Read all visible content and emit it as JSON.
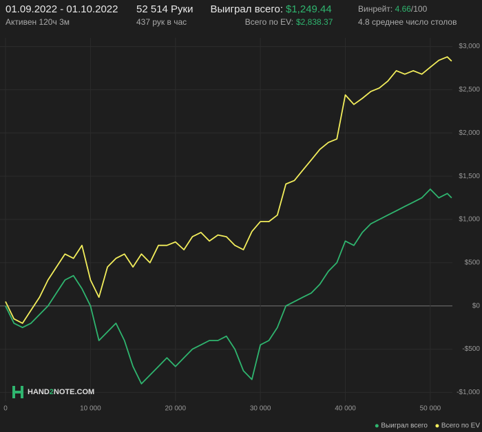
{
  "header": {
    "period": "01.09.2022 - 01.10.2022",
    "active": "Активен 120ч 3м",
    "hands": "52 514 Руки",
    "hands_per_hour": "437 рук в час",
    "won_label": "Выиграл всего:",
    "won_value": "$1,249.44",
    "ev_label": "Всего по EV:",
    "ev_value": "$2,838.37",
    "winrate_label": "Винрейт:",
    "winrate_value": "4.66",
    "winrate_unit": "/100",
    "tables": "4.8 среднее число столов"
  },
  "watermark": {
    "left": "HAND",
    "mid": "2",
    "right": "NOTE.COM"
  },
  "chart_data": {
    "type": "line",
    "grid": true,
    "legend": "bottom-right",
    "x": [
      0,
      1000,
      2000,
      3000,
      4000,
      5000,
      6000,
      7000,
      8000,
      9000,
      10000,
      11000,
      12000,
      13000,
      14000,
      15000,
      16000,
      17000,
      18000,
      19000,
      20000,
      21000,
      22000,
      23000,
      24000,
      25000,
      26000,
      27000,
      28000,
      29000,
      30000,
      31000,
      32000,
      33000,
      34000,
      35000,
      36000,
      37000,
      38000,
      39000,
      40000,
      41000,
      42000,
      43000,
      44000,
      45000,
      46000,
      47000,
      48000,
      49000,
      50000,
      51000,
      52000,
      52514
    ],
    "xlim": [
      0,
      52600
    ],
    "ylim": [
      -1100,
      3100
    ],
    "xticks": [
      0,
      {
        "value": 10000,
        "label": "10 000"
      },
      {
        "value": 20000,
        "label": "20 000"
      },
      {
        "value": 30000,
        "label": "30 000"
      },
      {
        "value": 40000,
        "label": "40 000"
      },
      {
        "value": 50000,
        "label": "50 000"
      }
    ],
    "yticks": [
      {
        "value": -1000,
        "label": "-$1,000"
      },
      {
        "value": -500,
        "label": "-$500"
      },
      {
        "value": 0,
        "label": "$0"
      },
      {
        "value": 500,
        "label": "$500"
      },
      {
        "value": 1000,
        "label": "$1,000"
      },
      {
        "value": 1500,
        "label": "$1,500"
      },
      {
        "value": 2000,
        "label": "$2,000"
      },
      {
        "value": 2500,
        "label": "$2,500"
      },
      {
        "value": 3000,
        "label": "$3,000"
      }
    ],
    "series": [
      {
        "name": "Выиграл всего",
        "color": "#2fb56f",
        "values": [
          0,
          -200,
          -250,
          -200,
          -100,
          0,
          150,
          300,
          350,
          200,
          0,
          -400,
          -300,
          -200,
          -400,
          -700,
          -900,
          -800,
          -700,
          -600,
          -700,
          -600,
          -500,
          -450,
          -400,
          -400,
          -350,
          -500,
          -750,
          -850,
          -450,
          -400,
          -250,
          0,
          50,
          100,
          150,
          250,
          400,
          500,
          750,
          700,
          850,
          950,
          1000,
          1050,
          1100,
          1150,
          1200,
          1250,
          1350,
          1250,
          1300,
          1250
        ]
      },
      {
        "name": "Всего по EV",
        "color": "#f3ee5c",
        "values": [
          50,
          -150,
          -200,
          -50,
          100,
          300,
          450,
          600,
          550,
          700,
          300,
          100,
          450,
          550,
          600,
          450,
          600,
          500,
          700,
          700,
          740,
          650,
          800,
          850,
          750,
          820,
          800,
          700,
          650,
          860,
          975,
          975,
          1050,
          1410,
          1450,
          1570,
          1690,
          1810,
          1890,
          1930,
          2440,
          2330,
          2400,
          2480,
          2520,
          2600,
          2720,
          2680,
          2720,
          2680,
          2760,
          2840,
          2880,
          2830
        ]
      }
    ]
  }
}
